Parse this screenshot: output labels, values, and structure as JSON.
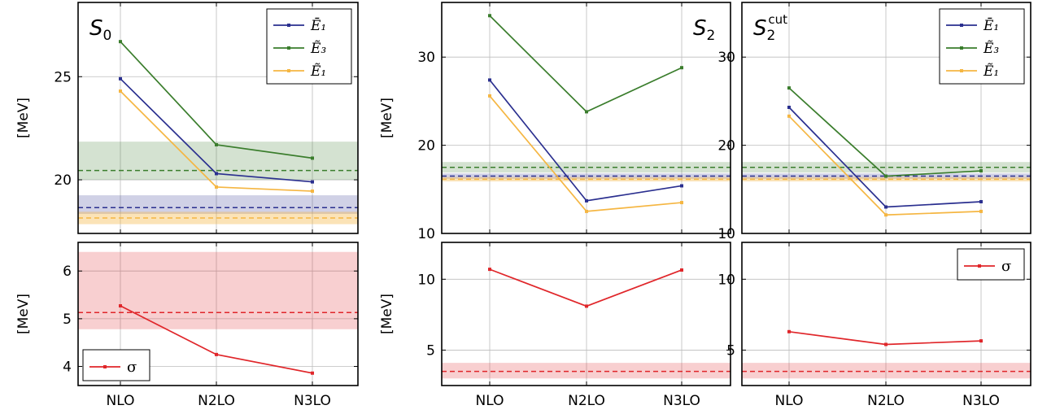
{
  "colors": {
    "E1bar": "#2a2f8f",
    "E3": "#3a7d2c",
    "E1tilde": "#f5b642",
    "sigma": "#e0262a"
  },
  "chart_data": [
    {
      "id": "s0_top",
      "type": "line",
      "title": "S",
      "title_sub": "0",
      "title_sup": "",
      "ylabel": "[MeV]",
      "categories": [
        "NLO",
        "N2LO",
        "N3LO"
      ],
      "show_xlabels": false,
      "ylim": [
        17.4,
        28.6
      ],
      "yticks": [
        20,
        25
      ],
      "series": [
        {
          "name": "Ē₁",
          "color_key": "E1bar",
          "values": [
            24.9,
            20.3,
            19.9
          ]
        },
        {
          "name": "Ẽ₃",
          "color_key": "E3",
          "values": [
            26.7,
            21.7,
            21.05
          ]
        },
        {
          "name": "Ẽ₁",
          "color_key": "E1tilde",
          "values": [
            24.3,
            19.65,
            19.45
          ]
        }
      ],
      "bands": [
        {
          "color_key": "E3",
          "center": 20.45,
          "low": 20.0,
          "high": 21.85
        },
        {
          "color_key": "E1bar",
          "center": 18.65,
          "low": 18.35,
          "high": 19.25
        },
        {
          "color_key": "E1tilde",
          "center": 18.15,
          "low": 17.85,
          "high": 18.45
        }
      ],
      "legend": "top-right"
    },
    {
      "id": "s0_bottom",
      "type": "line",
      "title": "",
      "title_sub": "",
      "title_sup": "",
      "ylabel": "[MeV]",
      "categories": [
        "NLO",
        "N2LO",
        "N3LO"
      ],
      "show_xlabels": true,
      "ylim": [
        3.6,
        6.6
      ],
      "yticks": [
        4,
        5,
        6
      ],
      "series": [
        {
          "name": "σ",
          "color_key": "sigma",
          "values": [
            5.27,
            4.25,
            3.86
          ]
        }
      ],
      "bands": [
        {
          "color_key": "sigma",
          "center": 5.13,
          "low": 4.78,
          "high": 6.4
        }
      ],
      "legend": "bottom-left"
    },
    {
      "id": "s2_top",
      "type": "line",
      "title": "S",
      "title_sub": "2",
      "title_sup": "",
      "ylabel": "[MeV]",
      "categories": [
        "NLO",
        "N2LO",
        "N3LO"
      ],
      "show_xlabels": false,
      "ylim": [
        10,
        36.2
      ],
      "yticks": [
        10,
        20,
        30
      ],
      "series": [
        {
          "name": "Ē₁",
          "color_key": "E1bar",
          "values": [
            27.4,
            13.7,
            15.4
          ]
        },
        {
          "name": "Ẽ₃",
          "color_key": "E3",
          "values": [
            34.7,
            23.8,
            28.8
          ]
        },
        {
          "name": "Ẽ₁",
          "color_key": "E1tilde",
          "values": [
            25.6,
            12.5,
            13.5
          ]
        }
      ],
      "bands": [
        {
          "color_key": "E3",
          "center": 17.5,
          "low": 16.9,
          "high": 18.1
        },
        {
          "color_key": "E1bar",
          "center": 16.5,
          "low": 16.2,
          "high": 16.8
        },
        {
          "color_key": "E1tilde",
          "center": 16.15,
          "low": 15.9,
          "high": 16.4
        }
      ],
      "legend": "none"
    },
    {
      "id": "s2_bottom",
      "type": "line",
      "title": "",
      "title_sub": "",
      "title_sup": "",
      "ylabel": "[MeV]",
      "categories": [
        "NLO",
        "N2LO",
        "N3LO"
      ],
      "show_xlabels": true,
      "ylim": [
        2.5,
        12.6
      ],
      "yticks": [
        5,
        10
      ],
      "series": [
        {
          "name": "σ",
          "color_key": "sigma",
          "values": [
            10.7,
            8.1,
            10.65
          ]
        }
      ],
      "bands": [
        {
          "color_key": "sigma",
          "center": 3.5,
          "low": 3.0,
          "high": 4.1
        }
      ],
      "legend": "none"
    },
    {
      "id": "s2cut_top",
      "type": "line",
      "title": "S",
      "title_sub": "2",
      "title_sup": "cut",
      "ylabel": "",
      "categories": [
        "NLO",
        "N2LO",
        "N3LO"
      ],
      "show_xlabels": false,
      "ylim": [
        10,
        36.2
      ],
      "yticks": [
        10,
        20,
        30
      ],
      "series": [
        {
          "name": "Ē₁",
          "color_key": "E1bar",
          "values": [
            24.3,
            13.0,
            13.6
          ]
        },
        {
          "name": "Ẽ₃",
          "color_key": "E3",
          "values": [
            26.5,
            16.5,
            17.1
          ]
        },
        {
          "name": "Ẽ₁",
          "color_key": "E1tilde",
          "values": [
            23.3,
            12.1,
            12.5
          ]
        }
      ],
      "bands": [
        {
          "color_key": "E3",
          "center": 17.5,
          "low": 16.9,
          "high": 18.1
        },
        {
          "color_key": "E1bar",
          "center": 16.5,
          "low": 16.2,
          "high": 16.8
        },
        {
          "color_key": "E1tilde",
          "center": 16.15,
          "low": 15.9,
          "high": 16.4
        }
      ],
      "legend": "top-right"
    },
    {
      "id": "s2cut_bottom",
      "type": "line",
      "title": "",
      "title_sub": "",
      "title_sup": "",
      "ylabel": "",
      "categories": [
        "NLO",
        "N2LO",
        "N3LO"
      ],
      "show_xlabels": true,
      "ylim": [
        2.5,
        12.6
      ],
      "yticks": [
        5,
        10
      ],
      "series": [
        {
          "name": "σ",
          "color_key": "sigma",
          "values": [
            6.3,
            5.4,
            5.65
          ]
        }
      ],
      "bands": [
        {
          "color_key": "sigma",
          "center": 3.5,
          "low": 3.0,
          "high": 4.1
        }
      ],
      "legend": "top-right"
    }
  ]
}
